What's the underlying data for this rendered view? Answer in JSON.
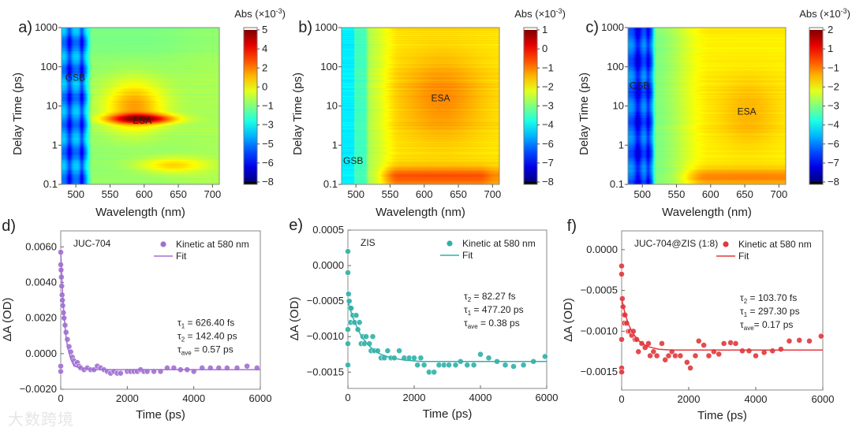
{
  "figure": {
    "watermark": "大数跨境"
  },
  "chart_data": [
    {
      "id": "a",
      "panel_label": "a)",
      "type": "heatmap",
      "xlabel": "Wavelength (nm)",
      "ylabel": "Delay Time (ps)",
      "xlim": [
        479,
        710
      ],
      "xticks": [
        "500",
        "550",
        "600",
        "650",
        "700"
      ],
      "ylim": [
        0.1,
        1000
      ],
      "yscale": "log",
      "yticks": [
        "0.1",
        "1",
        "10",
        "100",
        "1000"
      ],
      "colorbar": {
        "title": "Abs (×10",
        "title_exp": "-3",
        "title_suffix": ")",
        "ticks": [
          "5",
          "4",
          "2",
          "0",
          "−1",
          "−3",
          "−5",
          "−6",
          "−8"
        ],
        "colormap": "jet"
      },
      "annotations": [
        {
          "text": "GSB",
          "x": 499,
          "y": 55
        },
        {
          "text": "ESA",
          "x": 597,
          "y": 4.4
        }
      ]
    },
    {
      "id": "b",
      "panel_label": "b)",
      "type": "heatmap",
      "xlabel": "Wavelength (nm)",
      "ylabel": "Delay Time (ps)",
      "xlim": [
        479,
        710
      ],
      "xticks": [
        "500",
        "550",
        "600",
        "650",
        "700"
      ],
      "ylim": [
        0.1,
        1000
      ],
      "yscale": "log",
      "yticks": [
        "0.1",
        "1",
        "10",
        "100",
        "1000"
      ],
      "colorbar": {
        "title": "Abs (×10",
        "title_exp": "-3",
        "title_suffix": ")",
        "ticks": [
          "1",
          "0",
          "−1",
          "−2",
          "−3",
          "−4",
          "−6",
          "−7",
          "−8"
        ],
        "colormap": "jet"
      },
      "annotations": [
        {
          "text": "GSB",
          "x": 496,
          "y": 0.42
        },
        {
          "text": "ESA",
          "x": 624,
          "y": 16.6
        }
      ]
    },
    {
      "id": "c",
      "panel_label": "c)",
      "type": "heatmap",
      "xlabel": "Wavelength (nm)",
      "ylabel": "Delay Time (ps)",
      "xlim": [
        479,
        710
      ],
      "xticks": [
        "500",
        "550",
        "600",
        "650",
        "700"
      ],
      "ylim": [
        0.1,
        1000
      ],
      "yscale": "log",
      "yticks": [
        "0.1",
        "1",
        "10",
        "100",
        "1000"
      ],
      "colorbar": {
        "title": "Abs (×10",
        "title_exp": "-3",
        "title_suffix": ")",
        "ticks": [
          "2",
          "1",
          "−1",
          "−2",
          "−3",
          "−4",
          "−6",
          "−7",
          "−8"
        ],
        "colormap": "jet"
      },
      "annotations": [
        {
          "text": "GSB",
          "x": 496,
          "y": 35
        },
        {
          "text": "ESA",
          "x": 653,
          "y": 7.6
        }
      ]
    },
    {
      "id": "d",
      "panel_label": "d)",
      "type": "scatter",
      "sample": "JUC-704",
      "color": "#a070d0",
      "xlabel": "Time (ps)",
      "ylabel": "ΔA (OD)",
      "xlim": [
        0,
        6000
      ],
      "xticks": [
        0,
        2000,
        4000,
        6000
      ],
      "ylim": [
        -0.002,
        0.0069
      ],
      "yticks": [
        "0.0060",
        "0.0040",
        "0.0020",
        "0.0000",
        "−0.0020"
      ],
      "ytick_values": [
        0.006,
        0.004,
        0.002,
        0,
        -0.002
      ],
      "legend": {
        "scatter": "Kinetic at 580 nm",
        "fit": "Fit",
        "placement": "top-right"
      },
      "params": [
        {
          "sym": "τ",
          "sub": "1",
          "text": " = 626.40 fs"
        },
        {
          "sym": "τ",
          "sub": "2",
          "text": " = 142.40 ps"
        },
        {
          "sym": "τ",
          "sub": "ave",
          "text": " = 0.57 ps"
        }
      ],
      "points": [
        [
          0,
          0.005
        ],
        [
          0,
          -0.001
        ],
        [
          0,
          -0.0007
        ],
        [
          0,
          0.0057
        ],
        [
          10,
          0.0047
        ],
        [
          20,
          0.0043
        ],
        [
          30,
          0.0038
        ],
        [
          40,
          0.0033
        ],
        [
          50,
          0.003
        ],
        [
          60,
          0.0027
        ],
        [
          80,
          0.0023
        ],
        [
          100,
          0.002
        ],
        [
          130,
          0.0016
        ],
        [
          160,
          0.0012
        ],
        [
          200,
          0.0008
        ],
        [
          250,
          0.0004
        ],
        [
          300,
          0.0001
        ],
        [
          350,
          -0.0002
        ],
        [
          400,
          -0.0004
        ],
        [
          450,
          -0.0006
        ],
        [
          500,
          -0.0005
        ],
        [
          550,
          -0.0007
        ],
        [
          600,
          -0.0008
        ],
        [
          700,
          -0.0009
        ],
        [
          800,
          -0.0008
        ],
        [
          900,
          -0.0009
        ],
        [
          1000,
          -0.0009
        ],
        [
          1100,
          -0.0007
        ],
        [
          1200,
          -0.0008
        ],
        [
          1300,
          -0.0009
        ],
        [
          1400,
          -0.001
        ],
        [
          1500,
          -0.0011
        ],
        [
          1600,
          -0.001
        ],
        [
          1700,
          -0.0011
        ],
        [
          1800,
          -0.0011
        ],
        [
          2000,
          -0.001
        ],
        [
          2100,
          -0.001
        ],
        [
          2200,
          -0.001
        ],
        [
          2300,
          -0.001
        ],
        [
          2400,
          -0.0009
        ],
        [
          2500,
          -0.001
        ],
        [
          2600,
          -0.001
        ],
        [
          2800,
          -0.001
        ],
        [
          3000,
          -0.001
        ],
        [
          3200,
          -0.0008
        ],
        [
          3400,
          -0.0008
        ],
        [
          3600,
          -0.0009
        ],
        [
          3800,
          -0.0009
        ],
        [
          4000,
          -0.001
        ],
        [
          4250,
          -0.0008
        ],
        [
          4500,
          -0.0008
        ],
        [
          4750,
          -0.0008
        ],
        [
          5000,
          -0.0008
        ],
        [
          5300,
          -0.0008
        ],
        [
          5600,
          -0.0007
        ],
        [
          5900,
          -0.0008
        ]
      ],
      "fit": [
        [
          0,
          0.0058
        ],
        [
          25,
          0.0046
        ],
        [
          50,
          0.0036
        ],
        [
          100,
          0.0021
        ],
        [
          150,
          0.0011
        ],
        [
          200,
          0.0004
        ],
        [
          300,
          -0.0003
        ],
        [
          400,
          -0.0007
        ],
        [
          600,
          -0.0008
        ],
        [
          1000,
          -0.0009
        ],
        [
          6000,
          -0.0009
        ]
      ]
    },
    {
      "id": "e",
      "panel_label": "e)",
      "type": "scatter",
      "sample": "ZIS",
      "color": "#30b0a8",
      "xlabel": "Time (ps)",
      "ylabel": "ΔA (OD)",
      "xlim": [
        0,
        6000
      ],
      "xticks": [
        0,
        2000,
        4000,
        6000
      ],
      "ylim": [
        -0.00173,
        0.0005
      ],
      "yticks": [
        "0.0005",
        "0.0000",
        "−0.0005",
        "−0.0010",
        "−0.0015"
      ],
      "ytick_values": [
        0.0005,
        0,
        -0.0005,
        -0.001,
        -0.0015
      ],
      "legend": {
        "scatter": "Kinetic at 580 nm",
        "fit": "Fit",
        "placement": "top-right"
      },
      "params": [
        {
          "sym": "τ",
          "sub": "2",
          "text": " = 82.27 fs"
        },
        {
          "sym": "τ",
          "sub": "1",
          "text": " = 477.20 ps"
        },
        {
          "sym": "τ",
          "sub": "ave",
          "text": " = 0.38 ps"
        }
      ],
      "points": [
        [
          0,
          0.0002
        ],
        [
          0,
          -0.0001
        ],
        [
          0,
          -0.0011
        ],
        [
          0,
          -0.0014
        ],
        [
          0,
          -0.0009
        ],
        [
          20,
          -0.0004
        ],
        [
          40,
          -0.0005
        ],
        [
          60,
          -0.0006
        ],
        [
          80,
          -0.0008
        ],
        [
          100,
          -0.0006
        ],
        [
          150,
          -0.0007
        ],
        [
          200,
          -0.0008
        ],
        [
          250,
          -0.0007
        ],
        [
          300,
          -0.0009
        ],
        [
          350,
          -0.0008
        ],
        [
          400,
          -0.0011
        ],
        [
          450,
          -0.001
        ],
        [
          500,
          -0.0011
        ],
        [
          550,
          -0.001
        ],
        [
          650,
          -0.0011
        ],
        [
          700,
          -0.0012
        ],
        [
          750,
          -0.001
        ],
        [
          800,
          -0.0012
        ],
        [
          900,
          -0.0012
        ],
        [
          1000,
          -0.0013
        ],
        [
          1100,
          -0.0013
        ],
        [
          1200,
          -0.0012
        ],
        [
          1300,
          -0.0013
        ],
        [
          1400,
          -0.0013
        ],
        [
          1550,
          -0.0012
        ],
        [
          1700,
          -0.0013
        ],
        [
          1850,
          -0.0013
        ],
        [
          2000,
          -0.0013
        ],
        [
          2100,
          -0.0014
        ],
        [
          2200,
          -0.0013
        ],
        [
          2300,
          -0.0014
        ],
        [
          2450,
          -0.0015
        ],
        [
          2600,
          -0.0015
        ],
        [
          2750,
          -0.0014
        ],
        [
          2900,
          -0.0014
        ],
        [
          3050,
          -0.0014
        ],
        [
          3250,
          -0.0014
        ],
        [
          3400,
          -0.00135
        ],
        [
          3600,
          -0.0014
        ],
        [
          3800,
          -0.0014
        ],
        [
          4000,
          -0.00125
        ],
        [
          4250,
          -0.0013
        ],
        [
          4500,
          -0.00135
        ],
        [
          4750,
          -0.0014
        ],
        [
          5000,
          -0.00142
        ],
        [
          5300,
          -0.0014
        ],
        [
          5600,
          -0.00135
        ],
        [
          5950,
          -0.00128
        ]
      ],
      "fit": [
        [
          0,
          -0.0005
        ],
        [
          100,
          -0.00066
        ],
        [
          200,
          -0.00079
        ],
        [
          400,
          -0.00099
        ],
        [
          600,
          -0.00111
        ],
        [
          800,
          -0.0012
        ],
        [
          1000,
          -0.00125
        ],
        [
          1300,
          -0.0013
        ],
        [
          1700,
          -0.00133
        ],
        [
          2200,
          -0.00135
        ],
        [
          6000,
          -0.00135
        ]
      ]
    },
    {
      "id": "f",
      "panel_label": "f)",
      "type": "scatter",
      "sample": "JUC-704@ZIS (1:8)",
      "color": "#e0383c",
      "xlabel": "Time (ps)",
      "ylabel": "ΔA (OD)",
      "xlim": [
        0,
        6000
      ],
      "xticks": [
        0,
        2000,
        4000,
        6000
      ],
      "ylim": [
        -0.00172,
        0.00023
      ],
      "yticks": [
        "0.0000",
        "−0.0005",
        "−0.0010",
        "−0.0015"
      ],
      "ytick_values": [
        0,
        -0.0005,
        -0.001,
        -0.0015
      ],
      "legend": {
        "scatter": "Kinetic at 580 nm",
        "fit": "Fit",
        "placement": "top-right"
      },
      "params": [
        {
          "sym": "τ",
          "sub": "2",
          "text": " = 103.70 fs"
        },
        {
          "sym": "τ",
          "sub": "1",
          "text": " = 297.30 ps"
        },
        {
          "sym": "τ",
          "sub": "ave",
          "text": "= 0.17 ps"
        }
      ],
      "points": [
        [
          0,
          -0.0002
        ],
        [
          0,
          -0.0003
        ],
        [
          0,
          -0.00145
        ],
        [
          0,
          -0.0015
        ],
        [
          0,
          -0.0011
        ],
        [
          20,
          -0.0006
        ],
        [
          40,
          -0.0007
        ],
        [
          60,
          -0.0008
        ],
        [
          80,
          -0.0009
        ],
        [
          100,
          -0.0008
        ],
        [
          150,
          -0.0009
        ],
        [
          200,
          -0.001
        ],
        [
          250,
          -0.001
        ],
        [
          300,
          -0.00105
        ],
        [
          350,
          -0.001
        ],
        [
          400,
          -0.0011
        ],
        [
          450,
          -0.0011
        ],
        [
          500,
          -0.00125
        ],
        [
          600,
          -0.00115
        ],
        [
          700,
          -0.0012
        ],
        [
          800,
          -0.00115
        ],
        [
          850,
          -0.0013
        ],
        [
          950,
          -0.00125
        ],
        [
          1050,
          -0.0013
        ],
        [
          1200,
          -0.00115
        ],
        [
          1300,
          -0.00135
        ],
        [
          1400,
          -0.0013
        ],
        [
          1500,
          -0.00125
        ],
        [
          1600,
          -0.0013
        ],
        [
          1750,
          -0.0013
        ],
        [
          1950,
          -0.00138
        ],
        [
          2050,
          -0.00145
        ],
        [
          2200,
          -0.0013
        ],
        [
          2300,
          -0.00112
        ],
        [
          2450,
          -0.00117
        ],
        [
          2600,
          -0.0013
        ],
        [
          2750,
          -0.00125
        ],
        [
          2900,
          -0.00128
        ],
        [
          3050,
          -0.00115
        ],
        [
          3250,
          -0.00114
        ],
        [
          3400,
          -0.00115
        ],
        [
          3600,
          -0.00124
        ],
        [
          3800,
          -0.00124
        ],
        [
          4000,
          -0.0013
        ],
        [
          4250,
          -0.00126
        ],
        [
          4500,
          -0.00124
        ],
        [
          4750,
          -0.00122
        ],
        [
          5000,
          -0.00112
        ],
        [
          5300,
          -0.00111
        ],
        [
          5600,
          -0.00112
        ],
        [
          5950,
          -0.00106
        ]
      ],
      "fit": [
        [
          0,
          -0.0006
        ],
        [
          50,
          -0.00069
        ],
        [
          100,
          -0.00078
        ],
        [
          200,
          -0.00091
        ],
        [
          300,
          -0.001
        ],
        [
          450,
          -0.00109
        ],
        [
          600,
          -0.00115
        ],
        [
          800,
          -0.00119
        ],
        [
          1100,
          -0.00122
        ],
        [
          1500,
          -0.00123
        ],
        [
          6000,
          -0.00123
        ]
      ]
    }
  ]
}
